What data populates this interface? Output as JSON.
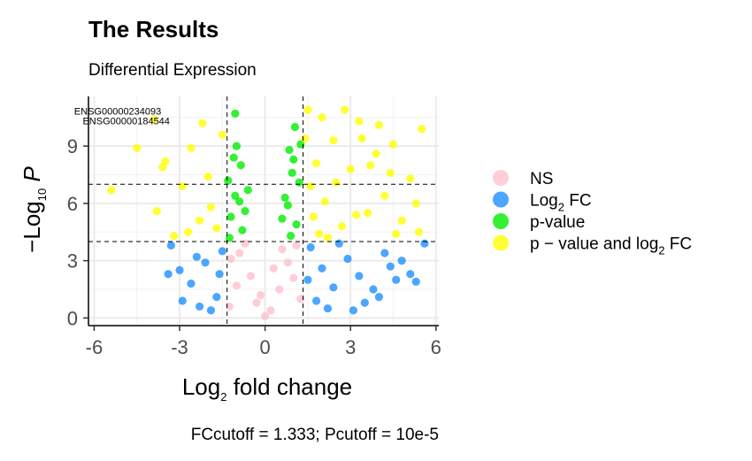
{
  "chart_data": {
    "type": "scatter",
    "title": "The Results",
    "subtitle": "Differential Expression",
    "xlabel": {
      "pre": "Log",
      "sub": "2",
      "post": " fold change"
    },
    "ylabel": {
      "pre": "−Log",
      "sub": "10",
      "post": " P"
    },
    "caption": "FCcutoff = 1.333; Pcutoff = 10e-5",
    "xlim": [
      -6.2,
      6.1
    ],
    "ylim": [
      -0.4,
      11.6
    ],
    "x_ticks": [
      {
        "value": -6,
        "label": "-6"
      },
      {
        "value": -3,
        "label": "-3"
      },
      {
        "value": 0,
        "label": "0"
      },
      {
        "value": 3,
        "label": "3"
      },
      {
        "value": 6,
        "label": "6"
      }
    ],
    "y_ticks": [
      {
        "value": 0,
        "label": "0"
      },
      {
        "value": 3,
        "label": "3"
      },
      {
        "value": 6,
        "label": "6"
      },
      {
        "value": 9,
        "label": "9"
      }
    ],
    "grid": true,
    "cutoffs": {
      "fc_lines": [
        -1.333,
        1.333
      ],
      "p_lines": [
        4.0,
        7.0
      ]
    },
    "legend_position": "right",
    "series": [
      {
        "name": "NS",
        "color": "#FFC0CB",
        "label_parts": [
          {
            "text": "NS"
          }
        ]
      },
      {
        "name": "Log2 FC",
        "color": "#1E90FF",
        "label_parts": [
          {
            "text": "Log"
          },
          {
            "text": "2",
            "sub": true
          },
          {
            "text": " FC"
          }
        ]
      },
      {
        "name": "p-value",
        "color": "#00EE00",
        "label_parts": [
          {
            "text": "p-value"
          }
        ]
      },
      {
        "name": "p - value and log2 FC",
        "color": "#FFFF00",
        "label_parts": [
          {
            "text": "p − value and log"
          },
          {
            "text": "2",
            "sub": true
          },
          {
            "text": " FC"
          }
        ]
      }
    ],
    "points": {
      "NS": [
        [
          -0.9,
          3.4
        ],
        [
          -0.5,
          2.2
        ],
        [
          0.2,
          0.4
        ],
        [
          0.8,
          2.9
        ],
        [
          1.1,
          3.8
        ],
        [
          -1.2,
          3.1
        ],
        [
          0.5,
          1.5
        ],
        [
          -0.3,
          0.8
        ],
        [
          1.0,
          2.1
        ],
        [
          -1.0,
          1.7
        ],
        [
          0.0,
          0.1
        ],
        [
          -0.7,
          3.9
        ],
        [
          0.6,
          3.6
        ],
        [
          -0.15,
          1.2
        ],
        [
          0.3,
          2.6
        ],
        [
          -1.25,
          0.6
        ],
        [
          1.25,
          1.0
        ]
      ],
      "Log2 FC": [
        [
          -3.3,
          3.8
        ],
        [
          -3.0,
          2.5
        ],
        [
          -2.6,
          1.8
        ],
        [
          -2.1,
          2.9
        ],
        [
          -1.7,
          1.1
        ],
        [
          -1.5,
          3.5
        ],
        [
          -2.9,
          0.9
        ],
        [
          -3.4,
          2.3
        ],
        [
          -2.3,
          0.6
        ],
        [
          -1.9,
          0.4
        ],
        [
          1.6,
          3.7
        ],
        [
          2.0,
          2.6
        ],
        [
          2.4,
          1.6
        ],
        [
          2.9,
          3.1
        ],
        [
          3.3,
          2.2
        ],
        [
          3.8,
          1.5
        ],
        [
          4.2,
          3.4
        ],
        [
          4.6,
          2.0
        ],
        [
          5.1,
          2.3
        ],
        [
          5.6,
          3.9
        ],
        [
          4.0,
          1.1
        ],
        [
          2.2,
          0.5
        ],
        [
          1.8,
          0.9
        ],
        [
          3.5,
          0.8
        ],
        [
          2.6,
          3.9
        ],
        [
          1.5,
          2.0
        ],
        [
          -2.4,
          3.2
        ],
        [
          -1.6,
          2.3
        ],
        [
          3.1,
          0.4
        ],
        [
          4.8,
          3.0
        ],
        [
          5.3,
          1.9
        ],
        [
          4.4,
          2.7
        ]
      ],
      "p-value": [
        [
          -1.3,
          7.2
        ],
        [
          -1.1,
          8.4
        ],
        [
          -0.9,
          6.1
        ],
        [
          -1.2,
          5.3
        ],
        [
          -0.8,
          4.6
        ],
        [
          -1.0,
          9.0
        ],
        [
          -0.6,
          6.7
        ],
        [
          -1.25,
          4.2
        ],
        [
          -0.7,
          5.6
        ],
        [
          -1.05,
          6.4
        ],
        [
          1.2,
          7.1
        ],
        [
          1.0,
          8.3
        ],
        [
          0.8,
          5.9
        ],
        [
          1.1,
          4.9
        ],
        [
          0.7,
          6.3
        ],
        [
          1.25,
          9.1
        ],
        [
          0.9,
          4.3
        ],
        [
          1.05,
          10.0
        ],
        [
          0.6,
          5.2
        ],
        [
          0.95,
          7.6
        ],
        [
          -1.05,
          10.7
        ],
        [
          -0.85,
          8.0
        ],
        [
          0.85,
          8.8
        ]
      ],
      "p - value and log2 FC": [
        [
          -5.4,
          6.7
        ],
        [
          -3.8,
          5.6
        ],
        [
          -3.5,
          8.2
        ],
        [
          -3.2,
          4.3
        ],
        [
          -2.9,
          6.9
        ],
        [
          -2.6,
          8.9
        ],
        [
          -2.3,
          5.1
        ],
        [
          -2.0,
          7.4
        ],
        [
          -1.7,
          4.7
        ],
        [
          -1.5,
          9.6
        ],
        [
          -3.6,
          7.9
        ],
        [
          -2.2,
          10.2
        ],
        [
          -1.9,
          5.8
        ],
        [
          -4.5,
          8.9
        ],
        [
          -3.9,
          10.4
        ],
        [
          -2.7,
          4.5
        ],
        [
          1.5,
          10.9
        ],
        [
          1.8,
          8.1
        ],
        [
          2.1,
          6.1
        ],
        [
          2.4,
          9.3
        ],
        [
          2.7,
          4.8
        ],
        [
          3.0,
          7.8
        ],
        [
          3.3,
          10.3
        ],
        [
          3.6,
          5.5
        ],
        [
          3.9,
          8.6
        ],
        [
          4.2,
          6.4
        ],
        [
          4.5,
          9.1
        ],
        [
          4.8,
          5.1
        ],
        [
          5.1,
          7.3
        ],
        [
          5.5,
          9.9
        ],
        [
          5.4,
          4.5
        ],
        [
          1.6,
          6.9
        ],
        [
          2.2,
          4.2
        ],
        [
          3.4,
          9.4
        ],
        [
          4.0,
          10.1
        ],
        [
          2.8,
          10.9
        ],
        [
          1.4,
          9.4
        ],
        [
          2.5,
          7.1
        ],
        [
          5.3,
          6.0
        ],
        [
          4.6,
          4.4
        ],
        [
          3.2,
          5.4
        ],
        [
          1.9,
          4.4
        ],
        [
          2.0,
          10.5
        ],
        [
          4.4,
          7.6
        ],
        [
          3.7,
          8.0
        ],
        [
          1.7,
          5.3
        ]
      ]
    },
    "annotations": [
      {
        "text": "ENSG00000234093",
        "x": -3.8,
        "y": 10.5
      },
      {
        "text": "ENSG00000184544",
        "x": -3.5,
        "y": 10.0
      }
    ]
  }
}
